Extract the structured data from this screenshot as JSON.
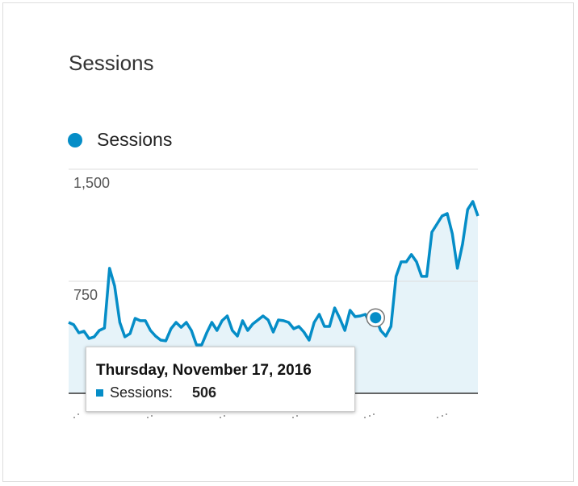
{
  "chart_data": {
    "type": "line",
    "title": "Sessions",
    "series": [
      {
        "name": "Sessions",
        "color": "#058dc7",
        "fill": "#e6f3f9",
        "values": [
          475,
          459,
          405,
          416,
          367,
          378,
          421,
          437,
          837,
          718,
          475,
          378,
          400,
          502,
          486,
          486,
          421,
          383,
          356,
          351,
          432,
          475,
          442,
          475,
          421,
          324,
          324,
          405,
          475,
          421,
          486,
          518,
          421,
          383,
          486,
          421,
          464,
          491,
          518,
          491,
          410,
          491,
          486,
          475,
          432,
          448,
          410,
          356,
          475,
          529,
          448,
          448,
          572,
          502,
          421,
          556,
          513,
          518,
          529,
          464,
          506,
          421,
          383,
          448,
          783,
          880,
          880,
          929,
          880,
          783,
          783,
          1079,
          1133,
          1187,
          1203,
          1068,
          837,
          1000,
          1230,
          1284,
          1187
        ]
      }
    ],
    "ylim": [
      0,
      1500
    ],
    "yticks": [
      750,
      {
        "value": 1500,
        "label": "1,500"
      }
    ],
    "grid": true,
    "tooltip": {
      "title": "Thursday, November 17, 2016",
      "label": "Sessions:"
    }
  }
}
